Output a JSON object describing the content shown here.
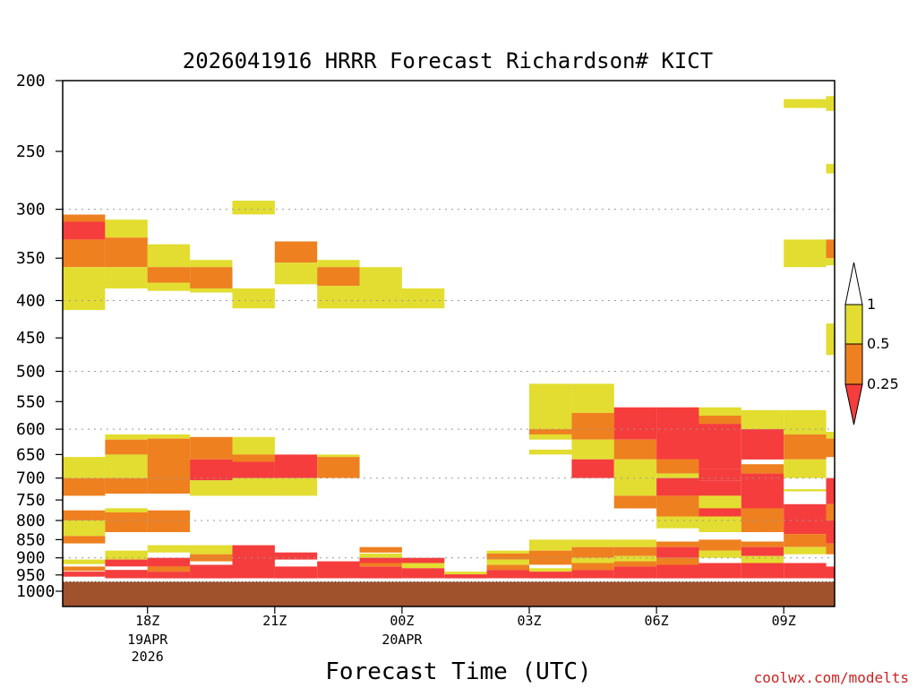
{
  "chart_data": {
    "type": "heatmap",
    "title": "2026041916 HRRR Forecast Richardson# KICT",
    "xlabel": "Forecast Time (UTC)",
    "credit": "coolwx.com/modelts",
    "y_scale": "log",
    "ylim": [
      1000,
      200
    ],
    "y_ticks": [
      200,
      250,
      300,
      350,
      400,
      450,
      500,
      550,
      600,
      650,
      700,
      750,
      800,
      850,
      900,
      950,
      1000
    ],
    "y_gridlines": [
      300,
      400,
      500,
      600,
      700,
      800,
      900
    ],
    "xlim": [
      16,
      34
    ],
    "x_ticks": [
      {
        "hour": 18,
        "label": "18Z",
        "sub1": "19APR",
        "sub2": "2026"
      },
      {
        "hour": 21,
        "label": "21Z",
        "sub1": "",
        "sub2": ""
      },
      {
        "hour": 24,
        "label": "00Z",
        "sub1": "20APR",
        "sub2": ""
      },
      {
        "hour": 27,
        "label": "03Z",
        "sub1": "",
        "sub2": ""
      },
      {
        "hour": 30,
        "label": "06Z",
        "sub1": "",
        "sub2": ""
      },
      {
        "hour": 33,
        "label": "09Z",
        "sub1": "",
        "sub2": ""
      }
    ],
    "colorbar": {
      "levels": [
        "0.25",
        "0.5",
        "1"
      ],
      "colors": {
        "lt025": "#f53d3d",
        "025_05": "#ee8020",
        "05_1": "#e2dd30",
        "gt1": "#ffffff",
        "ground": "#a0522d",
        "axis": "#000000"
      }
    },
    "ground_pressure": 960,
    "cells": [
      [
        16,
        17,
        305,
        312,
        "o"
      ],
      [
        16,
        17,
        312,
        330,
        "r"
      ],
      [
        16,
        17,
        330,
        360,
        "o"
      ],
      [
        16,
        17,
        360,
        412,
        "y"
      ],
      [
        16,
        17,
        655,
        700,
        "y"
      ],
      [
        16,
        17,
        700,
        740,
        "o"
      ],
      [
        16,
        17,
        775,
        800,
        "o"
      ],
      [
        16,
        17,
        800,
        840,
        "y"
      ],
      [
        16,
        17,
        840,
        860,
        "o"
      ],
      [
        16,
        17,
        905,
        918,
        "y"
      ],
      [
        16,
        17,
        925,
        938,
        "o"
      ],
      [
        16,
        17,
        940,
        955,
        "r"
      ],
      [
        17,
        18,
        310,
        328,
        "y"
      ],
      [
        17,
        18,
        328,
        360,
        "o"
      ],
      [
        17,
        18,
        360,
        385,
        "y"
      ],
      [
        17,
        18,
        610,
        620,
        "y"
      ],
      [
        17,
        18,
        620,
        650,
        "o"
      ],
      [
        17,
        18,
        650,
        700,
        "y"
      ],
      [
        17,
        18,
        700,
        735,
        "o"
      ],
      [
        17,
        18,
        770,
        780,
        "y"
      ],
      [
        17,
        18,
        780,
        830,
        "o"
      ],
      [
        17,
        18,
        880,
        905,
        "y"
      ],
      [
        17,
        18,
        905,
        925,
        "r"
      ],
      [
        17,
        18,
        935,
        960,
        "r"
      ],
      [
        18,
        19,
        335,
        360,
        "y"
      ],
      [
        18,
        19,
        360,
        378,
        "o"
      ],
      [
        18,
        19,
        378,
        388,
        "y"
      ],
      [
        18,
        19,
        610,
        618,
        "y"
      ],
      [
        18,
        19,
        618,
        735,
        "o"
      ],
      [
        18,
        19,
        775,
        830,
        "o"
      ],
      [
        18,
        19,
        865,
        885,
        "y"
      ],
      [
        18,
        19,
        900,
        925,
        "r"
      ],
      [
        18,
        19,
        925,
        940,
        "o"
      ],
      [
        18,
        19,
        940,
        960,
        "r"
      ],
      [
        19,
        20,
        352,
        360,
        "y"
      ],
      [
        19,
        20,
        360,
        385,
        "o"
      ],
      [
        19,
        20,
        385,
        390,
        "y"
      ],
      [
        19,
        20,
        615,
        660,
        "o"
      ],
      [
        19,
        20,
        660,
        705,
        "r"
      ],
      [
        19,
        20,
        705,
        740,
        "y"
      ],
      [
        19,
        20,
        865,
        890,
        "y"
      ],
      [
        19,
        20,
        890,
        910,
        "o"
      ],
      [
        19,
        20,
        920,
        960,
        "r"
      ],
      [
        20,
        21,
        292,
        305,
        "y"
      ],
      [
        20,
        21,
        385,
        410,
        "y"
      ],
      [
        20,
        21,
        615,
        650,
        "y"
      ],
      [
        20,
        21,
        650,
        665,
        "o"
      ],
      [
        20,
        21,
        665,
        700,
        "r"
      ],
      [
        20,
        21,
        700,
        740,
        "y"
      ],
      [
        20,
        21,
        865,
        960,
        "r"
      ],
      [
        21,
        22,
        332,
        355,
        "o"
      ],
      [
        21,
        22,
        355,
        380,
        "y"
      ],
      [
        21,
        22,
        650,
        700,
        "r"
      ],
      [
        21,
        22,
        700,
        740,
        "y"
      ],
      [
        21,
        22,
        885,
        905,
        "r"
      ],
      [
        21,
        22,
        925,
        960,
        "r"
      ],
      [
        22,
        23,
        352,
        360,
        "y"
      ],
      [
        22,
        23,
        360,
        382,
        "o"
      ],
      [
        22,
        23,
        382,
        410,
        "y"
      ],
      [
        22,
        23,
        650,
        655,
        "y"
      ],
      [
        22,
        23,
        655,
        700,
        "o"
      ],
      [
        22,
        23,
        910,
        960,
        "r"
      ],
      [
        23,
        24,
        360,
        410,
        "y"
      ],
      [
        23,
        24,
        870,
        885,
        "o"
      ],
      [
        23,
        24,
        888,
        900,
        "y"
      ],
      [
        23,
        24,
        900,
        915,
        "r"
      ],
      [
        23,
        24,
        915,
        925,
        "o"
      ],
      [
        23,
        24,
        925,
        960,
        "r"
      ],
      [
        24,
        25,
        385,
        410,
        "y"
      ],
      [
        24,
        25,
        900,
        915,
        "r"
      ],
      [
        24,
        25,
        915,
        930,
        "y"
      ],
      [
        24,
        25,
        930,
        960,
        "r"
      ],
      [
        25,
        26,
        940,
        948,
        "y"
      ],
      [
        25,
        26,
        948,
        960,
        "r"
      ],
      [
        26,
        27,
        880,
        888,
        "y"
      ],
      [
        26,
        27,
        888,
        905,
        "o"
      ],
      [
        26,
        27,
        905,
        920,
        "y"
      ],
      [
        26,
        27,
        920,
        935,
        "o"
      ],
      [
        26,
        27,
        935,
        960,
        "r"
      ],
      [
        27,
        28,
        520,
        600,
        "y"
      ],
      [
        27,
        28,
        600,
        610,
        "o"
      ],
      [
        27,
        28,
        610,
        620,
        "y"
      ],
      [
        27,
        28,
        640,
        650,
        "y"
      ],
      [
        27,
        28,
        850,
        880,
        "y"
      ],
      [
        27,
        28,
        880,
        920,
        "o"
      ],
      [
        27,
        28,
        930,
        940,
        "y"
      ],
      [
        27,
        28,
        940,
        960,
        "r"
      ],
      [
        28,
        29,
        520,
        570,
        "y"
      ],
      [
        28,
        29,
        570,
        620,
        "o"
      ],
      [
        28,
        29,
        620,
        660,
        "y"
      ],
      [
        28,
        29,
        660,
        700,
        "r"
      ],
      [
        28,
        29,
        850,
        870,
        "y"
      ],
      [
        28,
        29,
        870,
        900,
        "o"
      ],
      [
        28,
        29,
        900,
        915,
        "y"
      ],
      [
        28,
        29,
        915,
        935,
        "o"
      ],
      [
        28,
        29,
        935,
        960,
        "r"
      ],
      [
        29,
        30,
        560,
        620,
        "r"
      ],
      [
        29,
        30,
        620,
        660,
        "o"
      ],
      [
        29,
        30,
        660,
        740,
        "y"
      ],
      [
        29,
        30,
        740,
        770,
        "o"
      ],
      [
        29,
        30,
        850,
        870,
        "y"
      ],
      [
        29,
        30,
        870,
        895,
        "o"
      ],
      [
        29,
        30,
        895,
        910,
        "y"
      ],
      [
        29,
        30,
        910,
        925,
        "o"
      ],
      [
        29,
        30,
        925,
        960,
        "r"
      ],
      [
        30,
        31,
        560,
        660,
        "r"
      ],
      [
        30,
        31,
        660,
        690,
        "o"
      ],
      [
        30,
        31,
        690,
        700,
        "y"
      ],
      [
        30,
        31,
        700,
        740,
        "r"
      ],
      [
        30,
        31,
        740,
        790,
        "o"
      ],
      [
        30,
        31,
        790,
        820,
        "y"
      ],
      [
        30,
        31,
        855,
        870,
        "o"
      ],
      [
        30,
        31,
        870,
        900,
        "r"
      ],
      [
        30,
        31,
        900,
        920,
        "o"
      ],
      [
        30,
        31,
        920,
        960,
        "r"
      ],
      [
        31,
        32,
        560,
        575,
        "y"
      ],
      [
        31,
        32,
        575,
        590,
        "o"
      ],
      [
        31,
        32,
        590,
        680,
        "r"
      ],
      [
        31,
        32,
        680,
        705,
        "r"
      ],
      [
        31,
        32,
        705,
        740,
        "r"
      ],
      [
        31,
        32,
        740,
        770,
        "y"
      ],
      [
        31,
        32,
        770,
        790,
        "r"
      ],
      [
        31,
        32,
        790,
        830,
        "y"
      ],
      [
        31,
        32,
        850,
        880,
        "o"
      ],
      [
        31,
        32,
        880,
        900,
        "y"
      ],
      [
        31,
        32,
        915,
        960,
        "r"
      ],
      [
        32,
        33,
        565,
        600,
        "y"
      ],
      [
        32,
        33,
        600,
        660,
        "r"
      ],
      [
        32,
        33,
        670,
        690,
        "o"
      ],
      [
        32,
        33,
        690,
        770,
        "r"
      ],
      [
        32,
        33,
        770,
        830,
        "o"
      ],
      [
        32,
        33,
        855,
        870,
        "o"
      ],
      [
        32,
        33,
        870,
        895,
        "r"
      ],
      [
        32,
        33,
        895,
        915,
        "y"
      ],
      [
        32,
        33,
        915,
        960,
        "r"
      ],
      [
        33,
        34,
        212,
        218,
        "y"
      ],
      [
        33,
        34,
        330,
        360,
        "y"
      ],
      [
        33,
        34,
        565,
        610,
        "y"
      ],
      [
        33,
        34,
        610,
        660,
        "o"
      ],
      [
        33,
        34,
        660,
        700,
        "y"
      ],
      [
        33,
        34,
        725,
        730,
        "y"
      ],
      [
        33,
        34,
        760,
        835,
        "r"
      ],
      [
        33,
        34,
        835,
        870,
        "o"
      ],
      [
        33,
        34,
        870,
        890,
        "y"
      ],
      [
        33,
        34,
        915,
        960,
        "r"
      ],
      [
        34,
        34.45,
        210,
        220,
        "y"
      ],
      [
        34,
        34.45,
        260,
        268,
        "y"
      ],
      [
        34,
        34.45,
        330,
        350,
        "o"
      ],
      [
        34,
        34.45,
        350,
        358,
        "y"
      ],
      [
        34,
        34.45,
        430,
        475,
        "y"
      ],
      [
        34,
        34.45,
        605,
        618,
        "y"
      ],
      [
        34,
        34.45,
        618,
        655,
        "o"
      ],
      [
        34,
        34.45,
        700,
        760,
        "r"
      ],
      [
        34,
        34.45,
        760,
        800,
        "o"
      ],
      [
        34,
        34.45,
        800,
        860,
        "r"
      ],
      [
        34,
        34.45,
        860,
        890,
        "o"
      ],
      [
        34,
        34.45,
        925,
        960,
        "r"
      ]
    ]
  }
}
